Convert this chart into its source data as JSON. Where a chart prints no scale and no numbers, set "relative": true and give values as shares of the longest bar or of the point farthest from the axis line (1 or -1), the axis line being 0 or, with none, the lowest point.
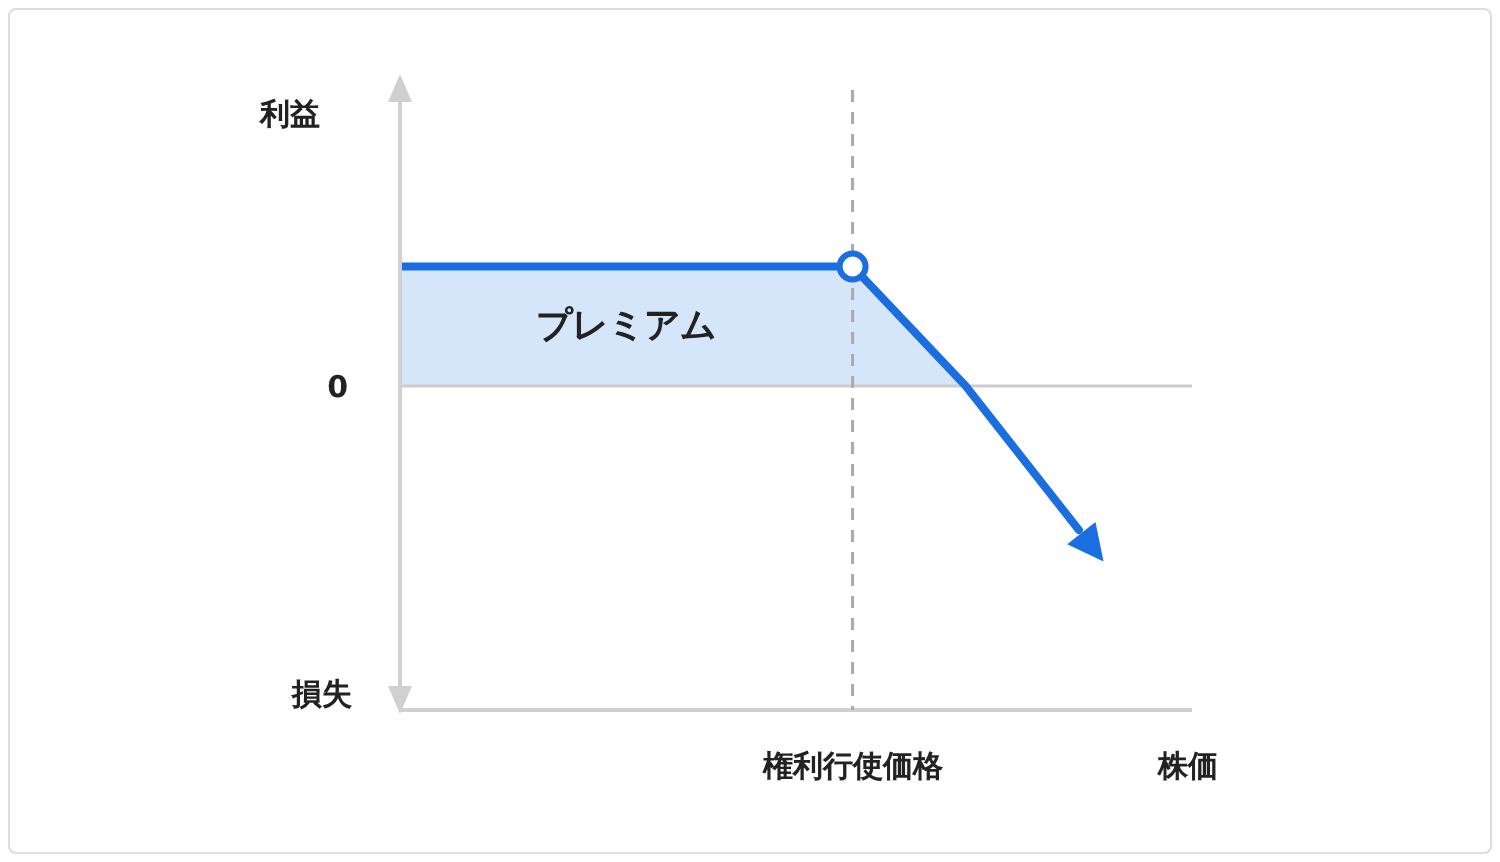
{
  "chart_data": {
    "type": "line",
    "relative": true,
    "categories": [
      null,
      null,
      null,
      null,
      null,
      null,
      null
    ],
    "series": [
      {
        "color": "#1a6ee0",
        "values": [
          0.83,
          0.83,
          0.83,
          0.83,
          0.83,
          0,
          -1
        ]
      }
    ],
    "ref_lines": [
      {
        "axis": "y",
        "value": 0,
        "label": "0",
        "color": "#cccccc"
      }
    ],
    "bands": [
      {
        "axis": "y",
        "from": 0,
        "to": 0.83,
        "label": "プレミアム",
        "color": "#d5e5fa"
      }
    ],
    "annotations": [
      "利益",
      "損失",
      "権利行使価格",
      "株価"
    ]
  }
}
